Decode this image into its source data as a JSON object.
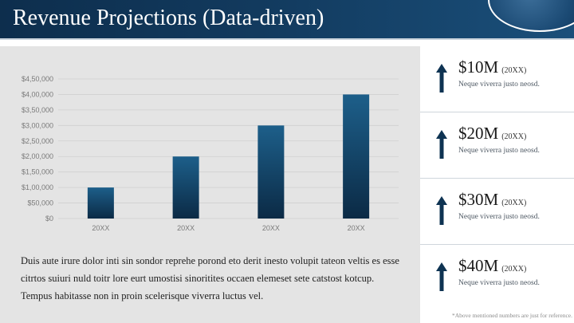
{
  "header": {
    "title": "Revenue Projections (Data-driven)"
  },
  "colors": {
    "bar_top": "#1d5f8a",
    "bar_bottom": "#0b2a45",
    "arrow": "#0e3352",
    "grid": "#cfcfcf"
  },
  "chart_data": {
    "type": "bar",
    "categories": [
      "20XX",
      "20XX",
      "20XX",
      "20XX"
    ],
    "values": [
      100000,
      200000,
      300000,
      400000
    ],
    "yticks": [
      "$0",
      "$50,000",
      "$1,00,000",
      "$1,50,000",
      "$2,00,000",
      "$2,50,000",
      "$3,00,000",
      "$3,50,000",
      "$4,00,000",
      "$4,50,000"
    ],
    "ylim": [
      0,
      450000
    ],
    "grid": true,
    "title": "",
    "xlabel": "",
    "ylabel": ""
  },
  "paragraph": "Duis aute irure dolor inti sin sondor reprehe porond eto derit inesto volupit tateon veltis es esse citrtos suiuri nuld toitr lore eurt umostisi sinoritites occaen elemeset sete catstost kotcup. Tempus habitasse non in proin scelerisque viverra luctus vel.",
  "cards": [
    {
      "value": "$10M",
      "year": "(20XX)",
      "desc": "Neque viverra justo neosd.",
      "icon": "arrow-up-icon"
    },
    {
      "value": "$20M",
      "year": "(20XX)",
      "desc": "Neque viverra justo neosd.",
      "icon": "arrow-up-icon"
    },
    {
      "value": "$30M",
      "year": "(20XX)",
      "desc": "Neque viverra justo neosd.",
      "icon": "arrow-up-icon"
    },
    {
      "value": "$40M",
      "year": "(20XX)",
      "desc": "Neque viverra justo neosd.",
      "icon": "arrow-up-icon"
    }
  ],
  "footnote": "*Above mentioned numbers are just for reference."
}
